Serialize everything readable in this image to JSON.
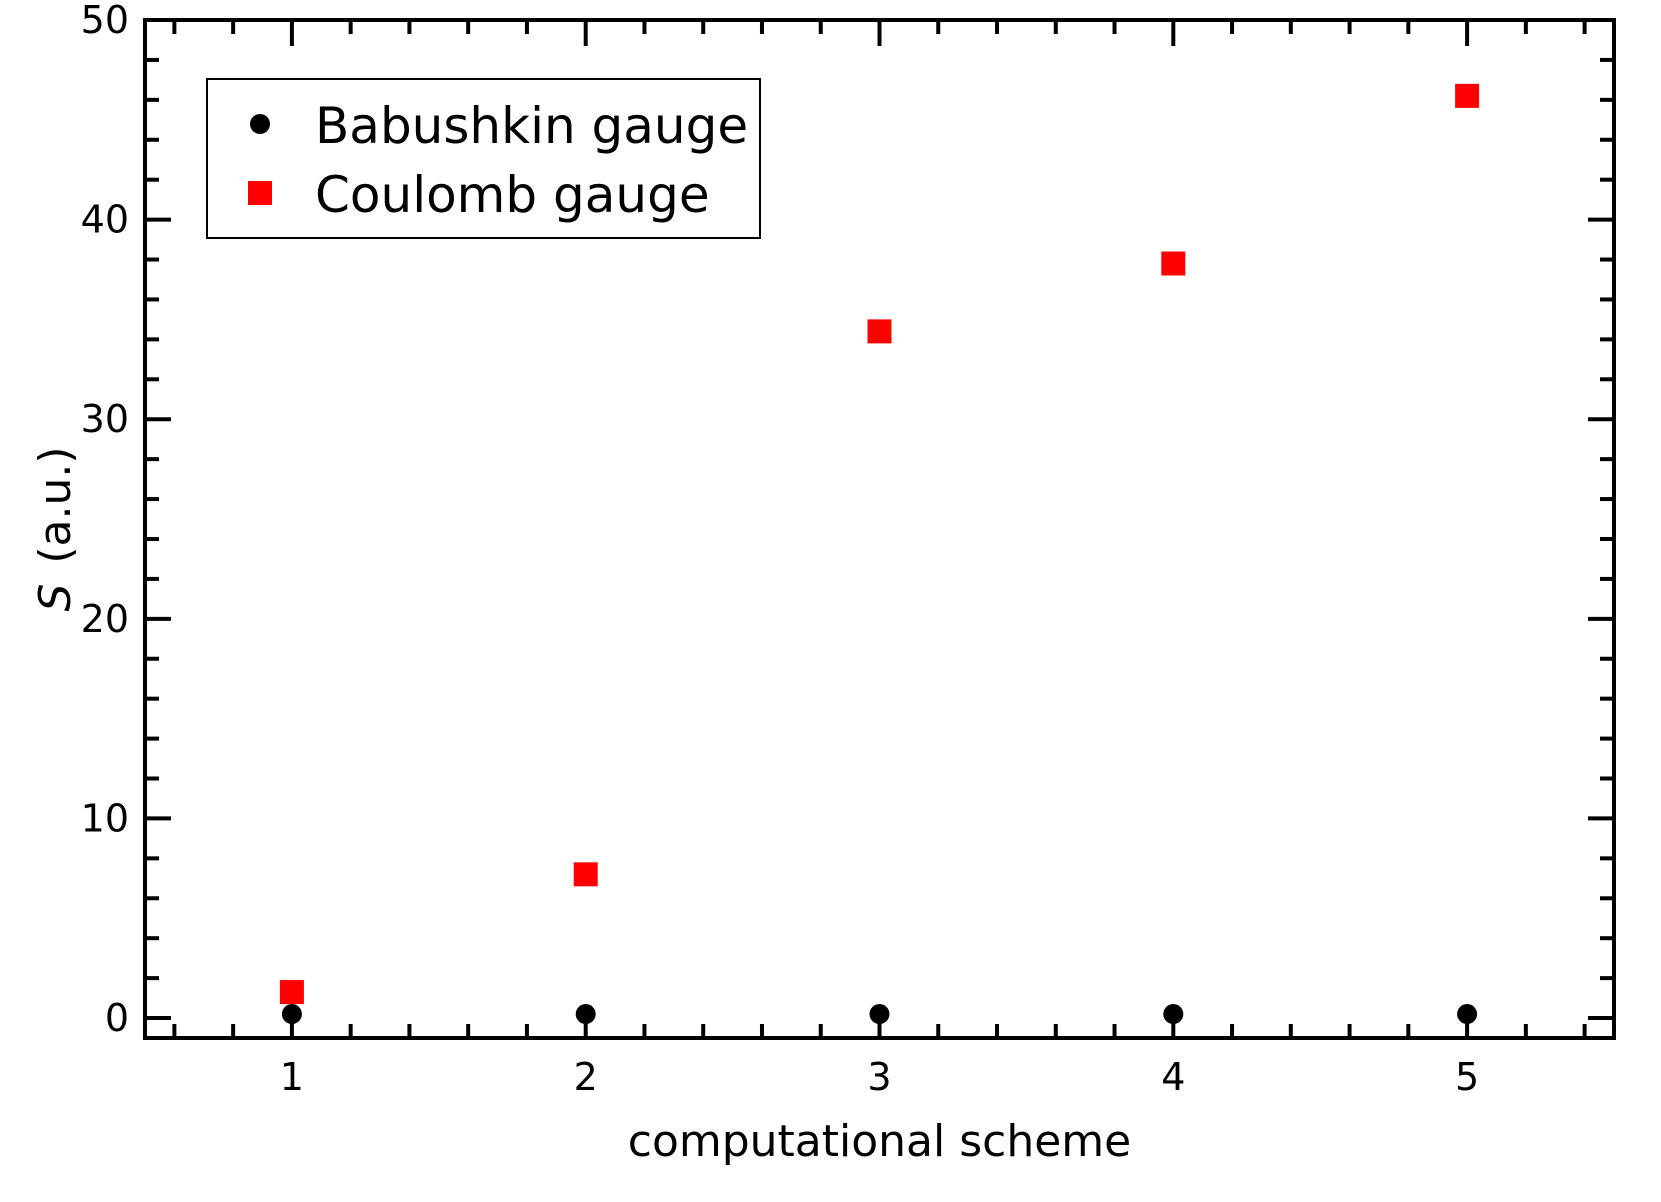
{
  "chart_data": {
    "type": "scatter",
    "title": "",
    "xlabel": "computational scheme",
    "ylabel_symbol": "S",
    "ylabel_unit": "(a.u.)",
    "xlim": [
      0.5,
      5.5
    ],
    "ylim": [
      -1,
      50
    ],
    "x_ticks": [
      1,
      2,
      3,
      4,
      5
    ],
    "y_ticks": [
      0,
      10,
      20,
      30,
      40,
      50
    ],
    "grid": false,
    "legend_position": "top-left",
    "series": [
      {
        "name": "Babushkin gauge",
        "marker": "circle",
        "color": "#000000",
        "x": [
          1,
          2,
          3,
          4,
          5
        ],
        "y": [
          0.2,
          0.2,
          0.2,
          0.2,
          0.2
        ]
      },
      {
        "name": "Coulomb gauge",
        "marker": "square",
        "color": "#ff0000",
        "x": [
          1,
          2,
          3,
          4,
          5
        ],
        "y": [
          1.3,
          7.2,
          34.4,
          37.8,
          46.2
        ]
      }
    ]
  }
}
